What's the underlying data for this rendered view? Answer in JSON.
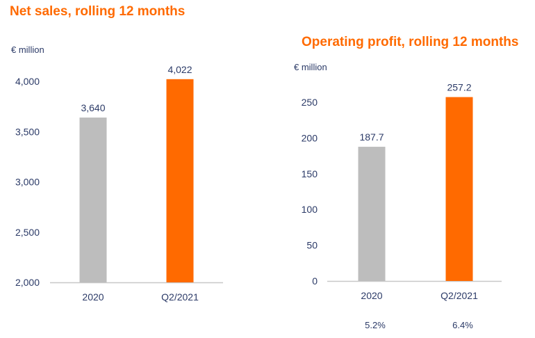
{
  "colors": {
    "title": "#ff6a00",
    "text": "#2b3a67",
    "bar_previous": "#bdbdbd",
    "bar_current": "#ff6a00",
    "axis": "#c8c8c8"
  },
  "operating_margins": [
    "5.2%",
    "6.4%"
  ],
  "chart_data": [
    {
      "type": "bar",
      "title": "Net sales, rolling 12 months",
      "unit": "€ million",
      "categories": [
        "2020",
        "Q2/2021"
      ],
      "values": [
        3640,
        4022
      ],
      "value_labels": [
        "3,640",
        "4,022"
      ],
      "ylim": [
        2000,
        4000
      ],
      "yticks": [
        2000,
        2500,
        3000,
        3500,
        4000
      ],
      "ytick_labels": [
        "2,000",
        "2,500",
        "3,000",
        "3,500",
        "4,000"
      ],
      "bar_colors": [
        "#bdbdbd",
        "#ff6a00"
      ],
      "grid": false,
      "legend": "none"
    },
    {
      "type": "bar",
      "title": "Operating profit, rolling 12 months",
      "unit": "€ million",
      "categories": [
        "2020",
        "Q2/2021"
      ],
      "values": [
        187.7,
        257.2
      ],
      "value_labels": [
        "187.7",
        "257.2"
      ],
      "ylim": [
        0,
        250
      ],
      "yticks": [
        0,
        50,
        100,
        150,
        200,
        250
      ],
      "ytick_labels": [
        "0",
        "50",
        "100",
        "150",
        "200",
        "250"
      ],
      "bar_colors": [
        "#bdbdbd",
        "#ff6a00"
      ],
      "grid": false,
      "legend": "none"
    }
  ]
}
